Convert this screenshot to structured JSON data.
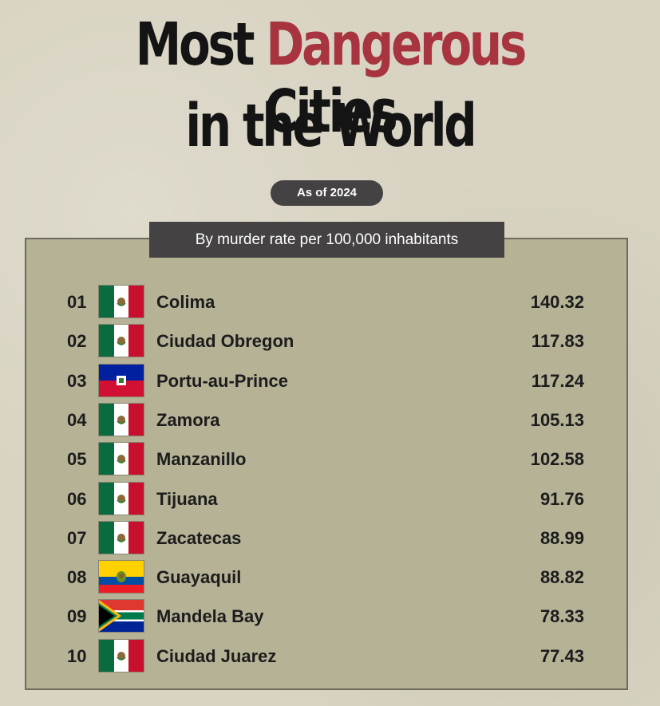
{
  "header": {
    "title_part1": "Most",
    "title_accent": "Dangerous",
    "title_part2": "Cities",
    "title_line2": "in the World",
    "badge": "As of 2024"
  },
  "colors": {
    "accent": "#a7343e",
    "dark": "#444242",
    "panel": "#b6b296",
    "background": "#d8d3c2"
  },
  "chart_data": {
    "type": "table",
    "title": "Most Dangerous Cities in the World",
    "subtitle": "By murder rate per 100,000 inhabitants",
    "note": "As of 2024",
    "rows": [
      {
        "rank": "01",
        "city": "Colima",
        "country_flag": "mexico",
        "value": "140.32"
      },
      {
        "rank": "02",
        "city": "Ciudad Obregon",
        "country_flag": "mexico",
        "value": "117.83"
      },
      {
        "rank": "03",
        "city": "Portu-au-Prince",
        "country_flag": "haiti",
        "value": "117.24"
      },
      {
        "rank": "04",
        "city": "Zamora",
        "country_flag": "mexico",
        "value": "105.13"
      },
      {
        "rank": "05",
        "city": "Manzanillo",
        "country_flag": "mexico",
        "value": "102.58"
      },
      {
        "rank": "06",
        "city": "Tijuana",
        "country_flag": "mexico",
        "value": "91.76"
      },
      {
        "rank": "07",
        "city": "Zacatecas",
        "country_flag": "mexico",
        "value": "88.99"
      },
      {
        "rank": "08",
        "city": "Guayaquil",
        "country_flag": "ecuador",
        "value": "88.82"
      },
      {
        "rank": "09",
        "city": "Mandela Bay",
        "country_flag": "south-africa",
        "value": "78.33"
      },
      {
        "rank": "10",
        "city": "Ciudad Juarez",
        "country_flag": "mexico",
        "value": "77.43"
      }
    ]
  }
}
